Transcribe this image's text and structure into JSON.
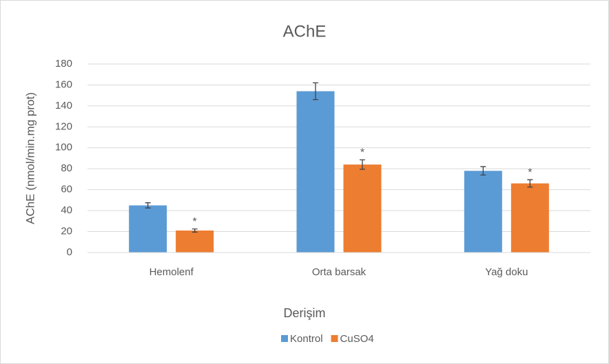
{
  "chart_data": {
    "type": "bar",
    "title": "AChE",
    "xlabel": "Derişim",
    "ylabel": "AChE (nmol/min.mg prot)",
    "categories": [
      "Hemolenf",
      "Orta barsak",
      "Yağ doku"
    ],
    "series": [
      {
        "name": "Kontrol",
        "color": "#5b9bd5",
        "values": [
          45,
          154,
          78
        ],
        "errors": [
          2.5,
          8,
          4
        ]
      },
      {
        "name": "CuSO4",
        "color": "#ed7d31",
        "values": [
          21,
          84,
          66
        ],
        "errors": [
          1.5,
          4.5,
          3.5
        ],
        "annotations": [
          "*",
          "*",
          "*"
        ]
      }
    ],
    "ylim": [
      0,
      180
    ],
    "yticks": [
      0,
      20,
      40,
      60,
      80,
      100,
      120,
      140,
      160,
      180
    ],
    "grid": true,
    "legend": "bottom"
  }
}
